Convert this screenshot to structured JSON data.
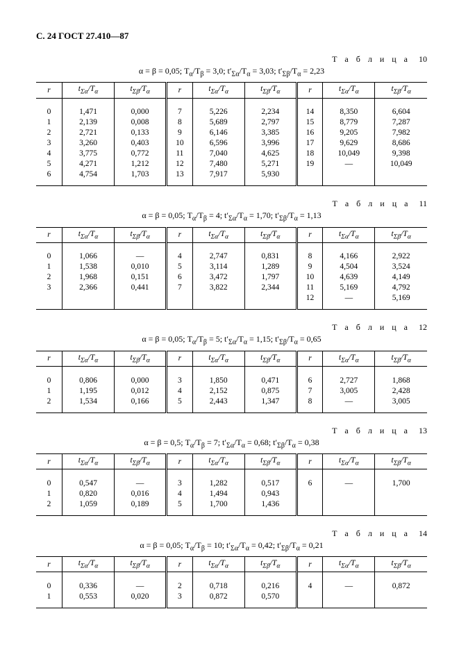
{
  "header": "С. 24 ГОСТ 27.410—87",
  "col_headers": {
    "r": "r",
    "tsa": "t<sub>Σα</sub>/T<sub>α</sub>",
    "tsb": "t<sub>Σβ</sub>/T<sub>α</sub>"
  },
  "tables": [
    {
      "label": "Т а б л и ц а",
      "num": "10",
      "formula": "α = β = 0,05;  T<sub>α</sub>/T<sub>β</sub> = 3,0;  t′<sub>Σα</sub>/T<sub>α</sub> = 3,03;  t′<sub>Σβ</sub>/T<sub>α</sub> = 2,23",
      "rows": [
        [
          "0",
          "1,471",
          "0,000",
          "7",
          "5,226",
          "2,234",
          "14",
          "8,350",
          "6,604"
        ],
        [
          "1",
          "2,139",
          "0,008",
          "8",
          "5,689",
          "2,797",
          "15",
          "8,779",
          "7,287"
        ],
        [
          "2",
          "2,721",
          "0,133",
          "9",
          "6,146",
          "3,385",
          "16",
          "9,205",
          "7,982"
        ],
        [
          "3",
          "3,260",
          "0,403",
          "10",
          "6,596",
          "3,996",
          "17",
          "9,629",
          "8,686"
        ],
        [
          "4",
          "3,775",
          "0,772",
          "11",
          "7,040",
          "4,625",
          "18",
          "10,049",
          "9,398"
        ],
        [
          "5",
          "4,271",
          "1,212",
          "12",
          "7,480",
          "5,271",
          "19",
          "—",
          "10,049"
        ],
        [
          "6",
          "4,754",
          "1,703",
          "13",
          "7,917",
          "5,930",
          "",
          "",
          ""
        ]
      ]
    },
    {
      "label": "Т а б л и ц а",
      "num": "11",
      "formula": "α = β = 0,05;  T<sub>α</sub>/T<sub>β</sub> = 4;  t′<sub>Σα</sub>/T<sub>α</sub> = 1,70;  t′<sub>Σβ</sub>/T<sub>α</sub> = 1,13",
      "rows": [
        [
          "0",
          "1,066",
          "—",
          "4",
          "2,747",
          "0,831",
          "8",
          "4,166",
          "2,922"
        ],
        [
          "1",
          "1,538",
          "0,010",
          "5",
          "3,114",
          "1,289",
          "9",
          "4,504",
          "3,524"
        ],
        [
          "2",
          "1,968",
          "0,151",
          "6",
          "3,472",
          "1,797",
          "10",
          "4,639",
          "4,149"
        ],
        [
          "3",
          "2,366",
          "0,441",
          "7",
          "3,822",
          "2,344",
          "11",
          "5,169",
          "4,792"
        ],
        [
          "",
          "",
          "",
          "",
          "",
          "",
          "12",
          "—",
          "5,169"
        ]
      ]
    },
    {
      "label": "Т а б л и ц а",
      "num": "12",
      "formula": "α = β = 0,05;  T<sub>α</sub>/T<sub>β</sub> = 5;  t′<sub>Σα</sub>/T<sub>α</sub> = 1,15;  t′<sub>Σβ</sub>/T<sub>α</sub> = 0,65",
      "rows": [
        [
          "0",
          "0,806",
          "0,000",
          "3",
          "1,850",
          "0,471",
          "6",
          "2,727",
          "1,868"
        ],
        [
          "1",
          "1,195",
          "0,012",
          "4",
          "2,152",
          "0,875",
          "7",
          "3,005",
          "2,428"
        ],
        [
          "2",
          "1,534",
          "0,166",
          "5",
          "2,443",
          "1,347",
          "8",
          "—",
          "3,005"
        ]
      ]
    },
    {
      "label": "Т а б л и ц а",
      "num": "13",
      "formula": "α = β = 0,5;  T<sub>α</sub>/T<sub>β</sub> = 7;  t′<sub>Σα</sub>/T<sub>α</sub> = 0,68;  t′<sub>Σβ</sub>/T<sub>α</sub> = 0,38",
      "rows": [
        [
          "0",
          "0,547",
          "—",
          "3",
          "1,282",
          "0,517",
          "6",
          "—",
          "1,700"
        ],
        [
          "1",
          "0,820",
          "0,016",
          "4",
          "1,494",
          "0,943",
          "",
          "",
          ""
        ],
        [
          "2",
          "1,059",
          "0,189",
          "5",
          "1,700",
          "1,436",
          "",
          "",
          ""
        ]
      ]
    },
    {
      "label": "Т а б л и ц а",
      "num": "14",
      "formula": "α = β = 0,05;  T<sub>α</sub>/T<sub>β</sub> = 10;  t′<sub>Σα</sub>/T<sub>α</sub> = 0,42;  t′<sub>Σβ</sub>/T<sub>α</sub> = 0,21",
      "rows": [
        [
          "0",
          "0,336",
          "—",
          "2",
          "0,718",
          "0,216",
          "4",
          "—",
          "0,872"
        ],
        [
          "1",
          "0,553",
          "0,020",
          "3",
          "0,872",
          "0,570",
          "",
          "",
          ""
        ]
      ]
    }
  ]
}
